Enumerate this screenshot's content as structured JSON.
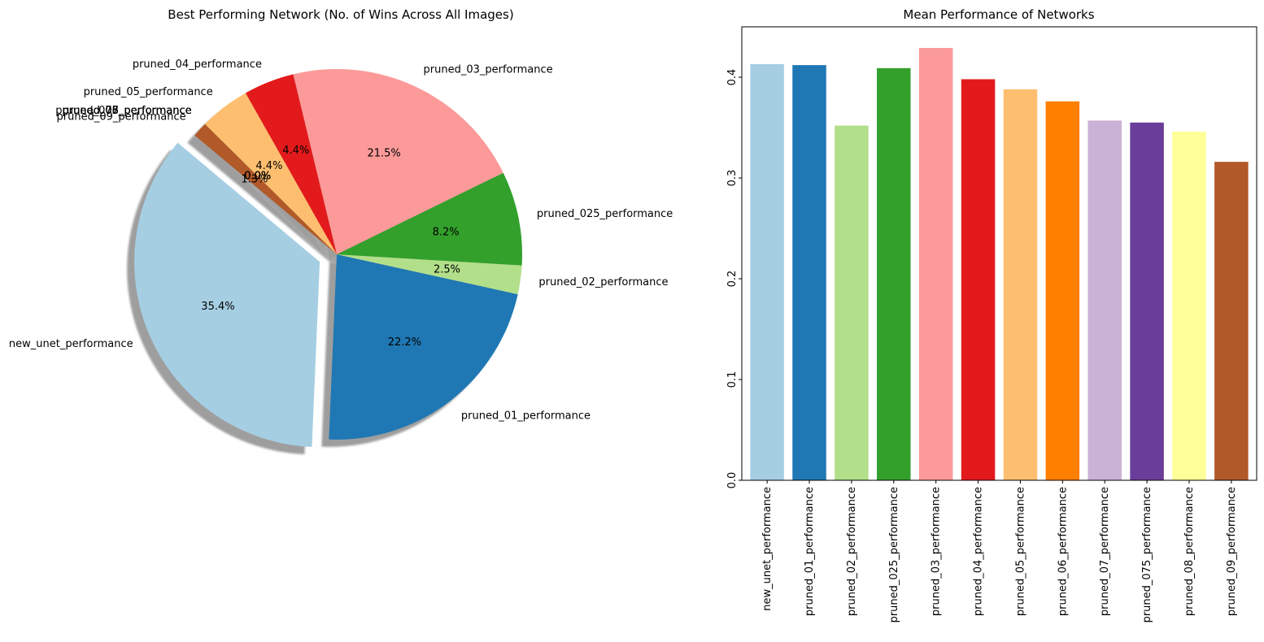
{
  "chart_data": [
    {
      "type": "pie",
      "title": "Best Performing Network (No. of Wins Across All Images)",
      "categories": [
        "new_unet_performance",
        "pruned_01_performance",
        "pruned_02_performance",
        "pruned_025_performance",
        "pruned_03_performance",
        "pruned_04_performance",
        "pruned_05_performance",
        "pruned_06_performance",
        "pruned_07_performance",
        "pruned_075_performance",
        "pruned_08_performance",
        "pruned_09_performance"
      ],
      "values": [
        35.4,
        22.2,
        2.5,
        8.2,
        21.5,
        4.4,
        4.4,
        0.0,
        0.0,
        0.0,
        0.0,
        1.3
      ],
      "pct_labels": [
        "35.4%",
        "22.2%",
        "2.5%",
        "8.2%",
        "21.5%",
        "4.4%",
        "4.4%",
        "0.0%",
        "0.0%",
        "0.0%",
        "0.0%",
        "1.3%"
      ],
      "colors": [
        "#a6cee3",
        "#1f78b4",
        "#b2df8a",
        "#33a02c",
        "#fb9a99",
        "#e31a1c",
        "#fdbf6f",
        "#ff7f00",
        "#cab2d6",
        "#6a3d9a",
        "#ffff99",
        "#b15928"
      ],
      "start_angle": 140,
      "exploded": "new_unet_performance",
      "shadow": true
    },
    {
      "type": "bar",
      "title": "Mean Performance of Networks",
      "categories": [
        "new_unet_performance",
        "pruned_01_performance",
        "pruned_02_performance",
        "pruned_025_performance",
        "pruned_03_performance",
        "pruned_04_performance",
        "pruned_05_performance",
        "pruned_06_performance",
        "pruned_07_performance",
        "pruned_075_performance",
        "pruned_08_performance",
        "pruned_09_performance"
      ],
      "values": [
        0.413,
        0.412,
        0.352,
        0.409,
        0.429,
        0.398,
        0.388,
        0.376,
        0.357,
        0.355,
        0.346,
        0.316
      ],
      "colors": [
        "#a6cee3",
        "#1f78b4",
        "#b2df8a",
        "#33a02c",
        "#fb9a99",
        "#e31a1c",
        "#fdbf6f",
        "#ff7f00",
        "#cab2d6",
        "#6a3d9a",
        "#ffff99",
        "#b15928"
      ],
      "ylim": [
        0,
        0.45
      ],
      "yticks": [
        0.0,
        0.1,
        0.2,
        0.3,
        0.4
      ],
      "ytick_labels": [
        "0.0",
        "0.1",
        "0.2",
        "0.3",
        "0.4"
      ],
      "xlabel": "",
      "ylabel": "",
      "grid": false
    }
  ]
}
